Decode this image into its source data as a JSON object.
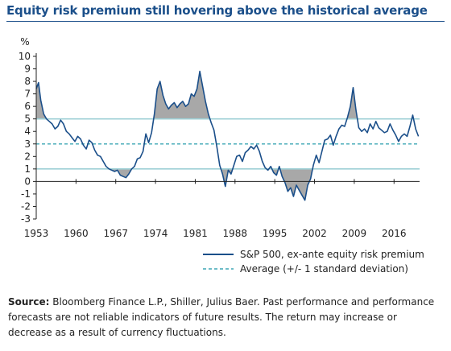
{
  "header": {
    "title": "Equity risk premium still hovering above the historical average"
  },
  "colors": {
    "line": "#1b4f8a",
    "band": "#9fd0d6",
    "average": "#3ea7b5",
    "shade": "#a8a8a8",
    "axis": "#222222"
  },
  "chart_data": {
    "type": "line",
    "ylabel": "%",
    "ylim": [
      -3,
      10
    ],
    "yticks": [
      -3,
      -2,
      -1,
      0,
      1,
      2,
      3,
      4,
      5,
      6,
      7,
      8,
      9,
      10
    ],
    "xlim": [
      1953,
      2020.5
    ],
    "xticks": [
      1953,
      1960,
      1967,
      1974,
      1981,
      1988,
      1995,
      2002,
      2009,
      2016
    ],
    "average": 3.0,
    "band": [
      1.0,
      5.0
    ],
    "legend": [
      "S&P 500, ex-ante equity risk premium",
      "Average (+/- 1 standard deviation)"
    ],
    "legend_position": "bottom-right",
    "series": [
      {
        "name": "S&P 500, ex-ante equity risk premium",
        "x": [
          1953.0,
          1953.4,
          1953.8,
          1954.3,
          1954.8,
          1955.3,
          1955.8,
          1956.3,
          1956.8,
          1957.3,
          1957.8,
          1958.3,
          1958.8,
          1959.3,
          1959.8,
          1960.3,
          1960.8,
          1961.3,
          1961.8,
          1962.3,
          1962.8,
          1963.3,
          1963.8,
          1964.3,
          1964.8,
          1965.3,
          1965.8,
          1966.3,
          1966.8,
          1967.3,
          1967.8,
          1968.3,
          1968.8,
          1969.3,
          1969.8,
          1970.3,
          1970.8,
          1971.3,
          1971.8,
          1972.3,
          1972.8,
          1973.3,
          1973.8,
          1974.3,
          1974.8,
          1975.3,
          1975.8,
          1976.3,
          1976.8,
          1977.3,
          1977.8,
          1978.3,
          1978.8,
          1979.3,
          1979.8,
          1980.3,
          1980.8,
          1981.3,
          1981.8,
          1982.3,
          1982.8,
          1983.3,
          1983.8,
          1984.3,
          1984.8,
          1985.3,
          1985.8,
          1986.3,
          1986.8,
          1987.3,
          1987.8,
          1988.3,
          1988.8,
          1989.3,
          1989.8,
          1990.3,
          1990.8,
          1991.3,
          1991.8,
          1992.3,
          1992.8,
          1993.3,
          1993.8,
          1994.3,
          1994.8,
          1995.3,
          1995.8,
          1996.3,
          1996.8,
          1997.3,
          1997.8,
          1998.3,
          1998.8,
          1999.3,
          1999.8,
          2000.3,
          2000.8,
          2001.3,
          2001.8,
          2002.3,
          2002.8,
          2003.3,
          2003.8,
          2004.3,
          2004.8,
          2005.3,
          2005.8,
          2006.3,
          2006.8,
          2007.3,
          2007.8,
          2008.3,
          2008.8,
          2009.3,
          2009.8,
          2010.3,
          2010.8,
          2011.3,
          2011.8,
          2012.3,
          2012.8,
          2013.3,
          2013.8,
          2014.3,
          2014.8,
          2015.3,
          2015.8,
          2016.3,
          2016.8,
          2017.3,
          2017.8,
          2018.3,
          2018.8,
          2019.3,
          2019.8,
          2020.3
        ],
        "values": [
          7.4,
          7.9,
          6.5,
          5.4,
          5.0,
          4.8,
          4.6,
          4.2,
          4.4,
          4.9,
          4.6,
          4.0,
          3.8,
          3.5,
          3.2,
          3.6,
          3.4,
          2.9,
          2.6,
          3.3,
          3.1,
          2.5,
          2.1,
          2.0,
          1.6,
          1.2,
          1.0,
          0.9,
          0.8,
          0.9,
          0.5,
          0.4,
          0.3,
          0.6,
          1.0,
          1.2,
          1.8,
          1.9,
          2.4,
          3.8,
          3.1,
          3.9,
          5.4,
          7.4,
          8.0,
          6.9,
          6.2,
          5.8,
          6.1,
          6.3,
          5.9,
          6.2,
          6.4,
          6.0,
          6.2,
          7.0,
          6.8,
          7.4,
          8.8,
          7.6,
          6.4,
          5.4,
          4.7,
          4.1,
          2.8,
          1.3,
          0.6,
          -0.4,
          0.9,
          0.6,
          1.3,
          2.0,
          2.1,
          1.6,
          2.3,
          2.5,
          2.8,
          2.6,
          2.9,
          2.4,
          1.6,
          1.1,
          0.9,
          1.2,
          0.7,
          0.5,
          1.2,
          0.4,
          -0.1,
          -0.8,
          -0.5,
          -1.2,
          -0.3,
          -0.7,
          -1.1,
          -1.5,
          -0.3,
          0.2,
          1.3,
          2.1,
          1.5,
          2.4,
          3.3,
          3.4,
          3.7,
          2.9,
          3.6,
          4.2,
          4.5,
          4.4,
          5.1,
          6.0,
          7.5,
          5.7,
          4.3,
          4.0,
          4.2,
          3.9,
          4.6,
          4.2,
          4.8,
          4.3,
          4.1,
          3.9,
          4.0,
          4.6,
          4.1,
          3.7,
          3.2,
          3.6,
          3.8,
          3.6,
          4.4,
          5.3,
          4.2,
          3.6
        ]
      }
    ]
  },
  "source": {
    "label": "Source:",
    "text": "Bloomberg Finance L.P., Shiller, Julius Baer. Past performance and performance forecasts are not reliable indicators of future results. The return may increase or decrease as a result of currency fluctuations."
  }
}
